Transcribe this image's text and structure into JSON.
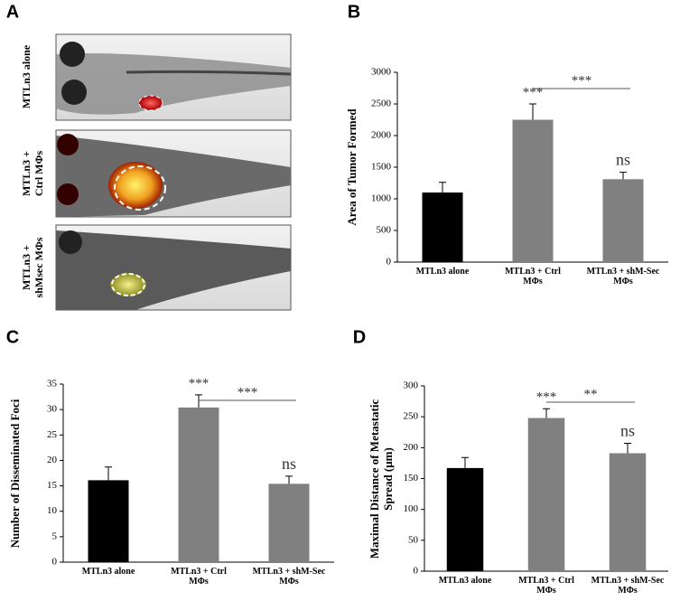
{
  "panel_labels": [
    "A",
    "B",
    "C",
    "D"
  ],
  "images": [
    {
      "label": "MTLn3 alone"
    },
    {
      "label": "MTLn3 +\nCtrl MΦs"
    },
    {
      "label": "MTLn3 +\nshMsec MΦs"
    }
  ],
  "chart_data": [
    {
      "type": "bar",
      "ylabel": "Area of Tumor Formed",
      "categories": [
        "MTLn3 alone",
        "MTLn3 + Ctrl\nMΦs",
        "MTLn3 + shM-Sec\nMΦs"
      ],
      "values": [
        1100,
        2250,
        1310
      ],
      "errors": [
        160,
        250,
        110
      ],
      "colors": [
        "#000000",
        "#808080",
        "#808080"
      ],
      "bar_labels": [
        null,
        "***",
        "ns"
      ],
      "bracket": {
        "from": 1,
        "to": 2,
        "text": "***"
      },
      "ylim": [
        0,
        3000
      ],
      "yticks": [
        0,
        500,
        1000,
        1500,
        2000,
        2500,
        3000
      ],
      "grid": false
    },
    {
      "type": "bar",
      "ylabel": "Number of Disseminated Foci",
      "categories": [
        "MTLn3 alone",
        "MTLn3 + Ctrl\nMΦs",
        "MTLn3 + shM-Sec\nMΦs"
      ],
      "values": [
        16.1,
        30.4,
        15.4
      ],
      "errors": [
        2.6,
        2.5,
        1.5
      ],
      "colors": [
        "#000000",
        "#808080",
        "#808080"
      ],
      "bar_labels": [
        null,
        "***",
        "ns"
      ],
      "bracket": {
        "from": 1,
        "to": 2,
        "text": "***"
      },
      "ylim": [
        0,
        35
      ],
      "yticks": [
        0,
        5,
        10,
        15,
        20,
        25,
        30,
        35
      ],
      "grid": false
    },
    {
      "type": "bar",
      "ylabel": "Maximal Distance of Metastatic\nSpread (μm)",
      "categories": [
        "MTLn3 alone",
        "MTLn3 + Ctrl\nMΦs",
        "MTLn3 + shM-Sec\nMΦs"
      ],
      "values": [
        167,
        248,
        191
      ],
      "errors": [
        17,
        15,
        16
      ],
      "colors": [
        "#000000",
        "#808080",
        "#808080"
      ],
      "bar_labels": [
        null,
        "***",
        "ns"
      ],
      "bracket": {
        "from": 1,
        "to": 2,
        "text": "**"
      },
      "ylim": [
        0,
        300
      ],
      "yticks": [
        0,
        50,
        100,
        150,
        200,
        250,
        300
      ],
      "grid": false
    }
  ]
}
